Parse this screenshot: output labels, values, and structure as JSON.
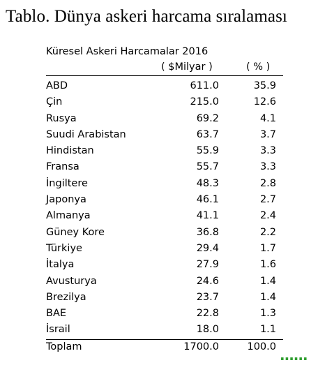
{
  "title": "Tablo. Dünya askeri harcama sıralaması",
  "table": {
    "caption": "Küresel Askeri Harcamalar 2016",
    "unit_value": "( $Milyar )",
    "unit_percent": "( % )",
    "rows": [
      {
        "country": "ABD",
        "value": "611.0",
        "percent": "35.9"
      },
      {
        "country": "Çin",
        "value": "215.0",
        "percent": "12.6"
      },
      {
        "country": "Rusya",
        "value": "69.2",
        "percent": "4.1"
      },
      {
        "country": "Suudi Arabistan",
        "value": "63.7",
        "percent": "3.7"
      },
      {
        "country": "Hindistan",
        "value": "55.9",
        "percent": "3.3"
      },
      {
        "country": "Fransa",
        "value": "55.7",
        "percent": "3.3"
      },
      {
        "country": "İngiltere",
        "value": "48.3",
        "percent": "2.8"
      },
      {
        "country": "Japonya",
        "value": "46.1",
        "percent": "2.7"
      },
      {
        "country": "Almanya",
        "value": "41.1",
        "percent": "2.4"
      },
      {
        "country": "Güney Kore",
        "value": "36.8",
        "percent": "2.2"
      },
      {
        "country": "Türkiye",
        "value": "29.4",
        "percent": "1.7"
      },
      {
        "country": "İtalya",
        "value": "27.9",
        "percent": "1.6"
      },
      {
        "country": "Avusturya",
        "value": "24.6",
        "percent": "1.4"
      },
      {
        "country": "Brezilya",
        "value": "23.7",
        "percent": "1.4"
      },
      {
        "country": "BAE",
        "value": "22.8",
        "percent": "1.3"
      },
      {
        "country": "İsrail",
        "value": "18.0",
        "percent": "1.1"
      }
    ],
    "total": {
      "label": "Toplam",
      "value": "1700.0",
      "percent": "100.0"
    }
  },
  "spellcheck_marker": "......",
  "colors": {
    "spellcheck": "#2f9e2f"
  }
}
